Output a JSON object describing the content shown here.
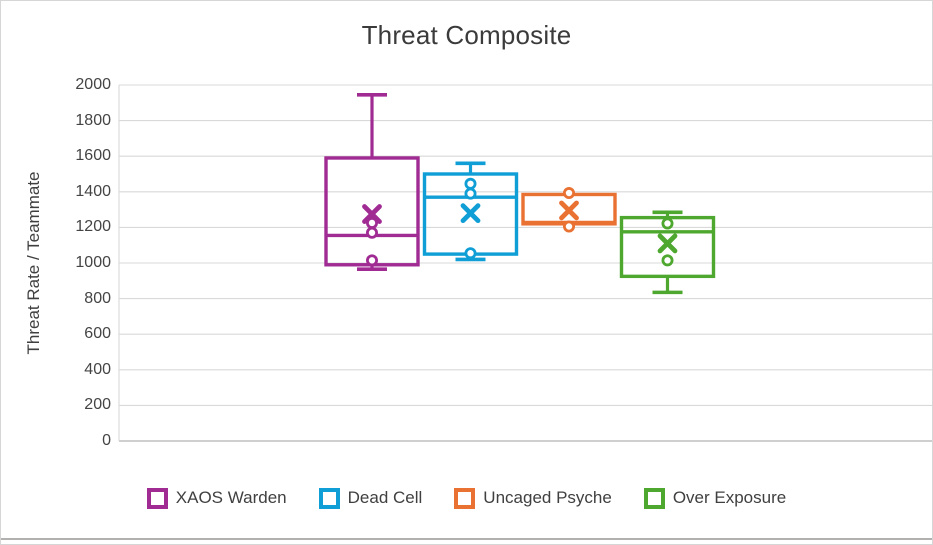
{
  "chart_data": {
    "type": "boxplot",
    "title": "Threat Composite",
    "ylabel": "Threat  Rate / Teammate",
    "xlabel": "",
    "ylim": [
      0,
      2000
    ],
    "ytick_step": 200,
    "yticks": [
      0,
      200,
      400,
      600,
      800,
      1000,
      1200,
      1400,
      1600,
      1800,
      2000
    ],
    "grid": true,
    "legend_position": "bottom",
    "marker_legend": {
      "mean": "x-marker",
      "outlier": "open-circle"
    },
    "series": [
      {
        "name": "XAOS Warden",
        "color": "#A02B93",
        "min": 965,
        "q1": 990,
        "median": 1155,
        "q3": 1590,
        "max": 1945,
        "mean": 1275,
        "points": [
          1225,
          1170,
          1015
        ]
      },
      {
        "name": "Dead Cell",
        "color": "#0F9ED5",
        "min": 1020,
        "q1": 1050,
        "median": 1370,
        "q3": 1500,
        "max": 1560,
        "mean": 1280,
        "points": [
          1445,
          1390,
          1055
        ]
      },
      {
        "name": "Uncaged Psyche",
        "color": "#E97132",
        "min": 1220,
        "q1": 1220,
        "median": 1228,
        "q3": 1385,
        "max": 1385,
        "mean": 1295,
        "points": [
          1393,
          1205
        ]
      },
      {
        "name": "Over Exposure",
        "color": "#4EA72E",
        "min": 835,
        "q1": 925,
        "median": 1175,
        "q3": 1255,
        "max": 1285,
        "mean": 1110,
        "points": [
          1222,
          1015
        ]
      }
    ]
  },
  "colors": {
    "gridline": "#D9D9D9",
    "axis_line": "#BFBFBF",
    "title_text": "#3B3B3B",
    "tick_text": "#444444",
    "background": "#FFFFFF"
  }
}
